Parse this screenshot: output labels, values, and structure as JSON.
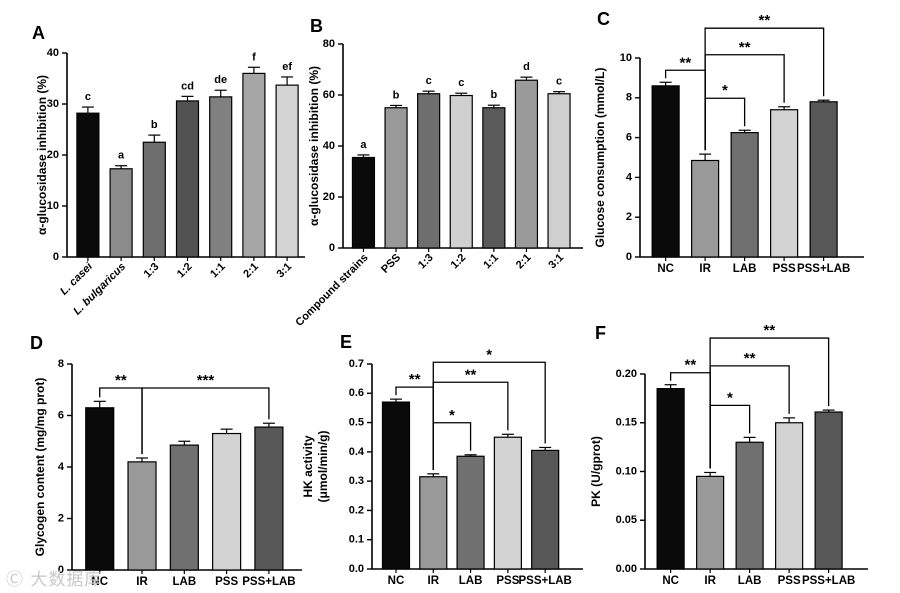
{
  "watermark": "Ⓒ 大数据库",
  "chart_data": [
    {
      "panel": "A",
      "type": "bar",
      "categories": [
        "L. casei",
        "L. bulgaricus",
        "1:3",
        "1:2",
        "1:1",
        "2:1",
        "3:1"
      ],
      "italic_categories": [
        true,
        true,
        false,
        false,
        false,
        false,
        false
      ],
      "values": [
        28.2,
        17.3,
        22.5,
        30.6,
        31.4,
        36.0,
        33.7
      ],
      "errors": [
        1.2,
        0.6,
        1.4,
        0.9,
        1.3,
        1.2,
        1.6
      ],
      "letters": [
        "c",
        "a",
        "b",
        "cd",
        "de",
        "f",
        "ef"
      ],
      "colors": [
        "#0a0a0a",
        "#8c8c8c",
        "#6e6e6e",
        "#525252",
        "#808080",
        "#a6a6a6",
        "#d4d4d4"
      ],
      "ylabel": "α-glucosidase inhibition (%)",
      "ylim": [
        0,
        40
      ],
      "yticks": [
        0,
        10,
        20,
        30,
        40
      ]
    },
    {
      "panel": "B",
      "type": "bar",
      "categories": [
        "Compound strains",
        "PSS",
        "1:3",
        "1:2",
        "1:1",
        "2:1",
        "3:1"
      ],
      "values": [
        35.5,
        55.0,
        60.5,
        59.8,
        55.0,
        65.8,
        60.5
      ],
      "errors": [
        1.0,
        0.9,
        1.0,
        0.9,
        1.0,
        1.2,
        0.8
      ],
      "letters": [
        "a",
        "b",
        "c",
        "c",
        "b",
        "d",
        "c"
      ],
      "colors": [
        "#0a0a0a",
        "#999999",
        "#6e6e6e",
        "#d0d0d0",
        "#5a5a5a",
        "#9a9a9a",
        "#cfcfcf"
      ],
      "ylabel": "α-glucosidase inhibition (%)",
      "ylim": [
        0,
        80
      ],
      "yticks": [
        0,
        20,
        40,
        60,
        80
      ]
    },
    {
      "panel": "C",
      "type": "bar",
      "categories": [
        "NC",
        "IR",
        "LAB",
        "PSS",
        "PSS+LAB"
      ],
      "values": [
        8.6,
        4.85,
        6.25,
        7.4,
        7.8
      ],
      "errors": [
        0.18,
        0.32,
        0.12,
        0.15,
        0.08
      ],
      "colors": [
        "#0a0a0a",
        "#999999",
        "#707070",
        "#d3d3d3",
        "#575757"
      ],
      "ylabel": "Glucose consumption (mmol/L)",
      "ylim": [
        0,
        10
      ],
      "yticks": [
        0,
        2,
        4,
        6,
        8,
        10
      ],
      "significance": [
        {
          "from": 0,
          "to": 1,
          "label": "**"
        },
        {
          "from": 1,
          "to": 2,
          "label": "*"
        },
        {
          "from": 1,
          "to": 3,
          "label": "**"
        },
        {
          "from": 1,
          "to": 4,
          "label": "**"
        }
      ]
    },
    {
      "panel": "D",
      "type": "bar",
      "categories": [
        "NC",
        "IR",
        "LAB",
        "PSS",
        "PSS+LAB"
      ],
      "values": [
        6.3,
        4.2,
        4.85,
        5.3,
        5.55
      ],
      "errors": [
        0.25,
        0.15,
        0.15,
        0.17,
        0.15
      ],
      "colors": [
        "#0a0a0a",
        "#999999",
        "#707070",
        "#d3d3d3",
        "#575757"
      ],
      "ylabel": "Glycogen content (mg/mg prot)",
      "ylim": [
        0,
        8
      ],
      "yticks": [
        0,
        2,
        4,
        6,
        8
      ],
      "significance": [
        {
          "from": 0,
          "to": 1,
          "label": "**"
        },
        {
          "from": 1,
          "to": 4,
          "label": "***"
        }
      ]
    },
    {
      "panel": "E",
      "type": "bar",
      "categories": [
        "NC",
        "IR",
        "LAB",
        "PSS",
        "PSS+LAB"
      ],
      "values": [
        0.57,
        0.315,
        0.385,
        0.45,
        0.405
      ],
      "errors": [
        0.01,
        0.01,
        0.005,
        0.01,
        0.01
      ],
      "colors": [
        "#0a0a0a",
        "#999999",
        "#707070",
        "#d3d3d3",
        "#575757"
      ],
      "ylabel": "HK activity",
      "ylabel2": "(μmol/min/g)",
      "ylim": [
        0,
        0.7
      ],
      "yticks": [
        0.0,
        0.1,
        0.2,
        0.3,
        0.4,
        0.5,
        0.6,
        0.7
      ],
      "significance": [
        {
          "from": 0,
          "to": 1,
          "label": "**"
        },
        {
          "from": 1,
          "to": 2,
          "label": "*"
        },
        {
          "from": 1,
          "to": 3,
          "label": "**"
        },
        {
          "from": 1,
          "to": 4,
          "label": "*"
        }
      ]
    },
    {
      "panel": "F",
      "type": "bar",
      "categories": [
        "NC",
        "IR",
        "LAB",
        "PSS",
        "PSS+LAB"
      ],
      "values": [
        0.185,
        0.095,
        0.13,
        0.15,
        0.161
      ],
      "errors": [
        0.004,
        0.004,
        0.005,
        0.005,
        0.002
      ],
      "colors": [
        "#0a0a0a",
        "#999999",
        "#707070",
        "#d3d3d3",
        "#575757"
      ],
      "ylabel": "PK (U/gprot)",
      "ylim": [
        0,
        0.2
      ],
      "yticks": [
        0.0,
        0.05,
        0.1,
        0.15,
        0.2
      ],
      "significance": [
        {
          "from": 0,
          "to": 1,
          "label": "**"
        },
        {
          "from": 1,
          "to": 2,
          "label": "*"
        },
        {
          "from": 1,
          "to": 3,
          "label": "**"
        },
        {
          "from": 1,
          "to": 4,
          "label": "**"
        }
      ]
    }
  ]
}
